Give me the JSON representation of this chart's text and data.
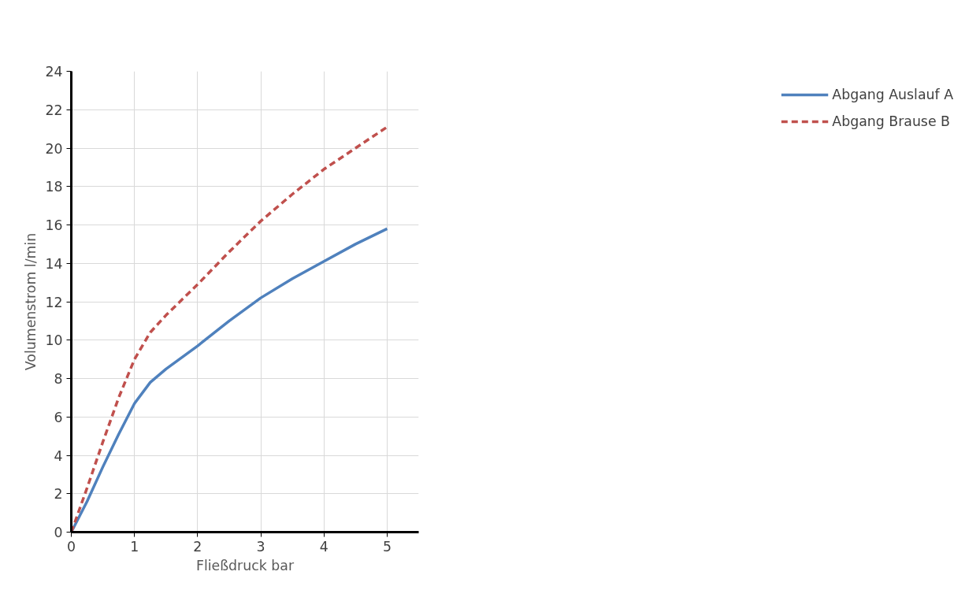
{
  "chart_data": {
    "type": "line",
    "xlabel": "Fließdruck bar",
    "ylabel": "Volumenstrom l/min",
    "xlim": [
      0,
      5.5
    ],
    "xticks": [
      0,
      1,
      2,
      3,
      4,
      5
    ],
    "ylim": [
      0,
      24
    ],
    "yticks": [
      0,
      2,
      4,
      6,
      8,
      10,
      12,
      14,
      16,
      18,
      20,
      22,
      24
    ],
    "grid": true,
    "legend": "right",
    "marker": "none",
    "series": [
      {
        "name": "Abgang Auslauf A",
        "color": "#4f81bd",
        "line_style": "solid",
        "x": [
          0,
          0.25,
          0.5,
          0.75,
          1,
          1.25,
          1.5,
          2,
          2.5,
          3,
          3.5,
          4,
          4.5,
          5
        ],
        "values": [
          0,
          1.6,
          3.4,
          5.1,
          6.7,
          7.8,
          8.5,
          9.7,
          11.0,
          12.2,
          13.2,
          14.1,
          15.0,
          15.8
        ]
      },
      {
        "name": "Abgang Brause B",
        "color": "#c0504d",
        "line_style": "dashed",
        "x": [
          0,
          0.25,
          0.5,
          0.75,
          1,
          1.25,
          1.5,
          2,
          2.5,
          3,
          3.5,
          4,
          4.5,
          5
        ],
        "values": [
          0,
          2.3,
          4.7,
          7.0,
          9.0,
          10.4,
          11.3,
          12.9,
          14.6,
          16.2,
          17.6,
          18.9,
          20.0,
          21.1
        ]
      }
    ]
  }
}
